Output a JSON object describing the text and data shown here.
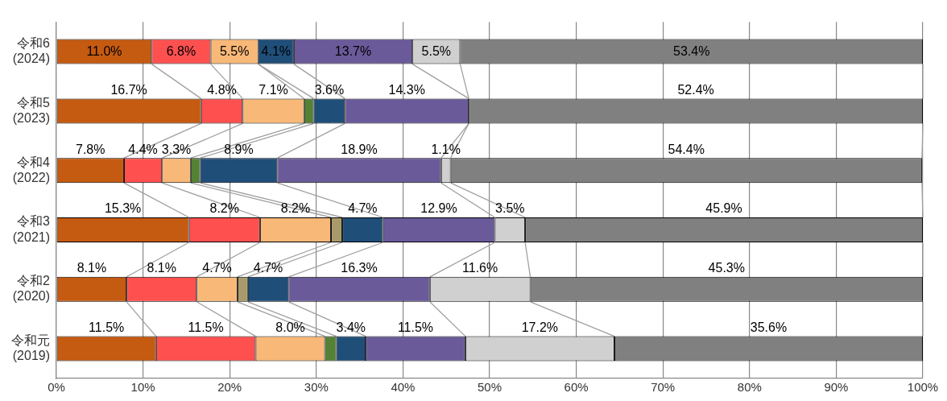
{
  "chart_data": {
    "type": "bar",
    "orientation": "horizontal",
    "stacked": true,
    "categories": [
      "令和6\n(2024)",
      "令和5\n(2023)",
      "令和4\n(2022)",
      "令和3\n(2021)",
      "令和2\n(2020)",
      "令和元\n(2019)"
    ],
    "xlim": [
      0,
      100
    ],
    "xticks": [
      {
        "value": 0,
        "label": "0%"
      },
      {
        "value": 10,
        "label": "10%"
      },
      {
        "value": 20,
        "label": "20%"
      },
      {
        "value": 30,
        "label": "30%"
      },
      {
        "value": 40,
        "label": "40%"
      },
      {
        "value": 50,
        "label": "50%"
      },
      {
        "value": 60,
        "label": "60%"
      },
      {
        "value": 70,
        "label": "70%"
      },
      {
        "value": 80,
        "label": "80%"
      },
      {
        "value": 90,
        "label": "90%"
      },
      {
        "value": 100,
        "label": "100%"
      }
    ],
    "grid": "x",
    "legend": false,
    "series": [
      {
        "color": "#c55a11",
        "values": [
          11.0,
          16.7,
          7.8,
          15.3,
          8.1,
          11.5
        ],
        "value_labels": [
          "11.0%",
          "16.7%",
          "7.8%",
          "15.3%",
          "8.1%",
          "11.5%"
        ]
      },
      {
        "color": "#ff5050",
        "values": [
          6.8,
          4.8,
          4.4,
          8.2,
          8.1,
          11.5
        ],
        "value_labels": [
          "6.8%",
          "4.8%",
          "4.4%",
          "8.2%",
          "8.1%",
          "11.5%"
        ]
      },
      {
        "color": "#f8b878",
        "values": [
          5.5,
          7.1,
          3.3,
          8.2,
          4.7,
          8.0
        ],
        "value_labels": [
          "5.5%",
          "7.1%",
          "3.3%",
          "8.2%",
          "4.7%",
          "8.0%"
        ]
      },
      {
        "colors": [
          "#548235",
          "#548235",
          "#548235",
          "#a89a6a",
          "#a89a6a",
          "#548235"
        ],
        "values": [
          null,
          1.1,
          1.1,
          1.3,
          1.2,
          1.3
        ]
      },
      {
        "color": "#1f4e79",
        "values": [
          4.1,
          3.6,
          8.9,
          4.7,
          4.7,
          3.4
        ],
        "value_labels": [
          "4.1%",
          "3.6%",
          "8.9%",
          "4.7%",
          "4.7%",
          "3.4%"
        ]
      },
      {
        "color": "#6a5a9a",
        "values": [
          13.7,
          14.3,
          18.9,
          12.9,
          16.3,
          11.5
        ],
        "value_labels": [
          "13.7%",
          "14.3%",
          "18.9%",
          "12.9%",
          "16.3%",
          "11.5%"
        ]
      },
      {
        "color": "#d0d0d0",
        "values": [
          5.5,
          null,
          1.1,
          3.5,
          11.6,
          17.2
        ],
        "value_labels": [
          "5.5%",
          null,
          "1.1%",
          "3.5%",
          "11.6%",
          "17.2%"
        ]
      },
      {
        "color": "#808080",
        "values": [
          53.4,
          52.4,
          54.4,
          45.9,
          45.3,
          35.6
        ],
        "value_labels": [
          "53.4%",
          "52.4%",
          "54.4%",
          "45.9%",
          "45.3%",
          "35.6%"
        ]
      }
    ]
  }
}
